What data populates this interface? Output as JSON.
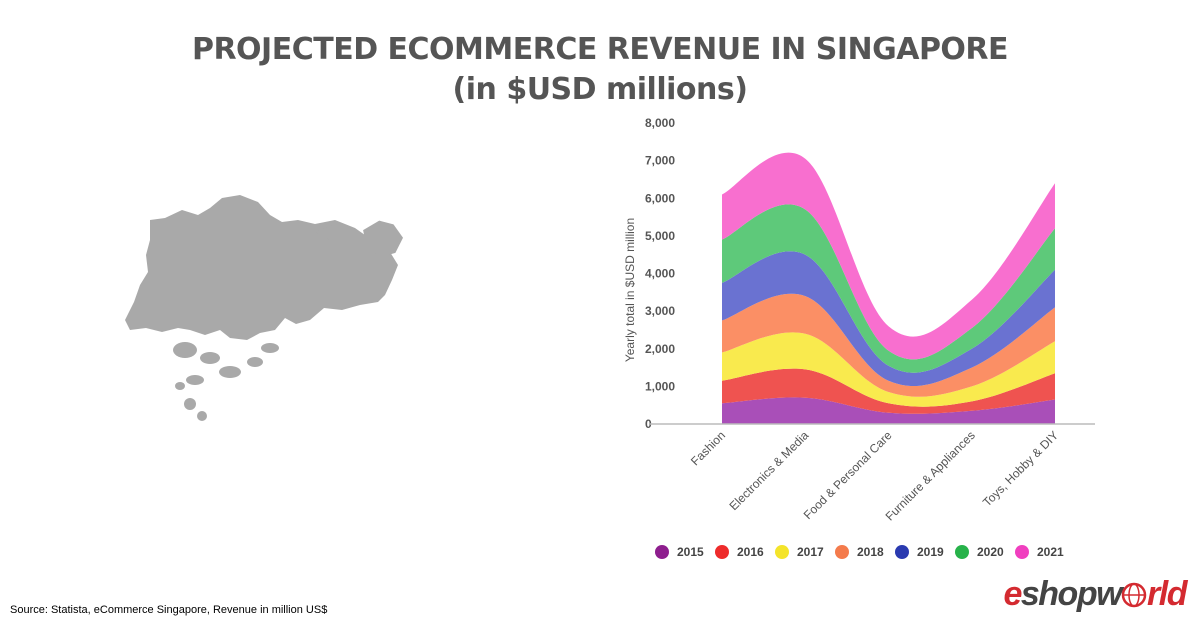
{
  "header": {
    "title_line1": "PROJECTED ECOMMERCE REVENUE IN SINGAPORE",
    "title_line2": "(in $USD millions)"
  },
  "footer": {
    "source": "Source: Statista, eCommerce Singapore, Revenue in million US$",
    "brand_part1": "e",
    "brand_part2": "shopw",
    "brand_part3": "rld"
  },
  "map": {
    "region": "Singapore",
    "fill_color": "#a9a9a9"
  },
  "chart_data": {
    "type": "area",
    "stacked": true,
    "smooth": true,
    "title": "",
    "xlabel": "",
    "ylabel": "Yearly total in $USD million",
    "ylim": [
      0,
      8000
    ],
    "yticks": [
      0,
      1000,
      2000,
      3000,
      4000,
      5000,
      6000,
      7000,
      8000
    ],
    "ytick_labels": [
      "0",
      "1,000",
      "2,000",
      "3,000",
      "4,000",
      "5,000",
      "6,000",
      "7,000",
      "8,000"
    ],
    "categories": [
      "Fashion",
      "Electronics & Media",
      "Food & Personal Care",
      "Furniture & Appliances",
      "Toys, Hobby & DIY"
    ],
    "series": [
      {
        "name": "2015",
        "color": "#a94fb8",
        "values": [
          550,
          700,
          300,
          350,
          650
        ]
      },
      {
        "name": "2016",
        "color": "#ef5350",
        "values": [
          600,
          750,
          250,
          250,
          700
        ]
      },
      {
        "name": "2017",
        "color": "#f9ea4e",
        "values": [
          750,
          950,
          300,
          400,
          850
        ]
      },
      {
        "name": "2018",
        "color": "#fb8f65",
        "values": [
          850,
          1000,
          300,
          500,
          900
        ]
      },
      {
        "name": "2019",
        "color": "#6a72d1",
        "values": [
          1000,
          1100,
          400,
          500,
          1000
        ]
      },
      {
        "name": "2020",
        "color": "#5ec97a",
        "values": [
          1150,
          1200,
          400,
          550,
          1100
        ]
      },
      {
        "name": "2021",
        "color": "#f86fcf",
        "values": [
          1200,
          1350,
          650,
          750,
          1200
        ]
      }
    ],
    "legend": {
      "position": "bottom",
      "items": [
        {
          "label": "2015",
          "color": "#8e1e8e"
        },
        {
          "label": "2016",
          "color": "#ee2b2b"
        },
        {
          "label": "2017",
          "color": "#f4e42a"
        },
        {
          "label": "2018",
          "color": "#f47b4c"
        },
        {
          "label": "2019",
          "color": "#2a3ab0"
        },
        {
          "label": "2020",
          "color": "#27b24a"
        },
        {
          "label": "2021",
          "color": "#f03fbf"
        }
      ]
    }
  }
}
